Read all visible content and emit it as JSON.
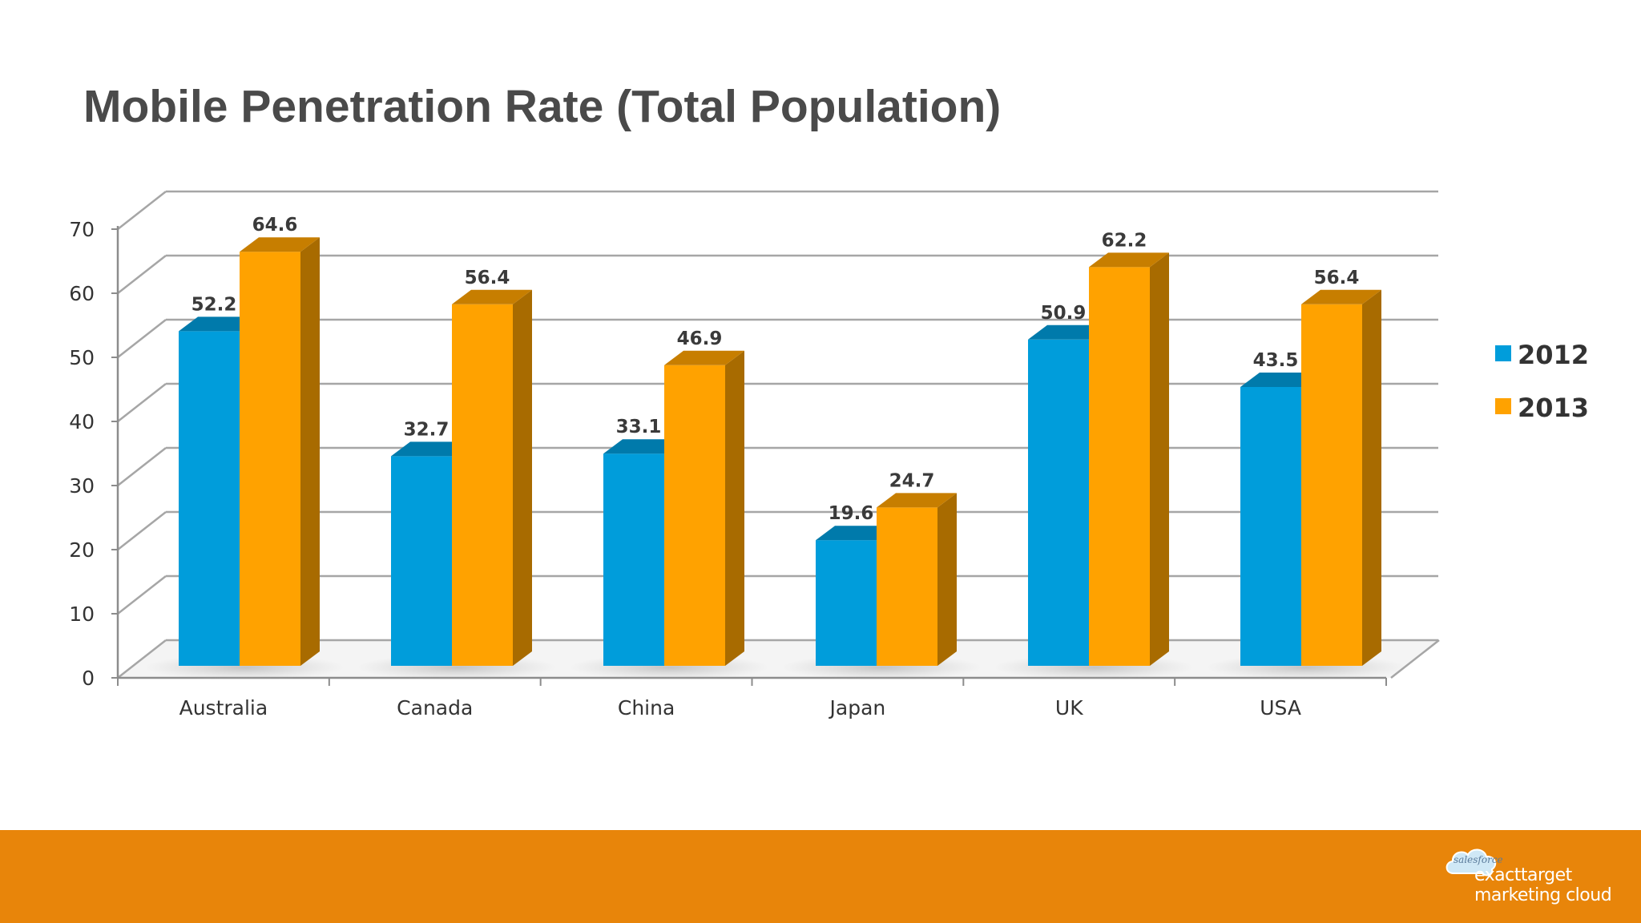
{
  "slide": {
    "title": "Mobile Penetration Rate (Total Population)"
  },
  "chart_data": {
    "type": "bar",
    "categories": [
      "Australia",
      "Canada",
      "China",
      "Japan",
      "UK",
      "USA"
    ],
    "series": [
      {
        "name": "2012",
        "values": [
          52.2,
          32.7,
          33.1,
          19.6,
          50.9,
          43.5
        ],
        "color": "#009ddb"
      },
      {
        "name": "2013",
        "values": [
          64.6,
          56.4,
          46.9,
          24.7,
          62.2,
          56.4
        ],
        "color": "#ffa200"
      }
    ],
    "ylim": [
      0,
      70
    ],
    "yticks": [
      0,
      10,
      20,
      30,
      40,
      50,
      60,
      70
    ],
    "xlabel": "",
    "ylabel": "",
    "grid": true,
    "legend": "right",
    "style": "3d-column"
  },
  "footer": {
    "color": "#e8850a",
    "logo": {
      "cloud_text": "salesforce",
      "line1": "exacttarget",
      "line2": "marketing cloud"
    }
  }
}
